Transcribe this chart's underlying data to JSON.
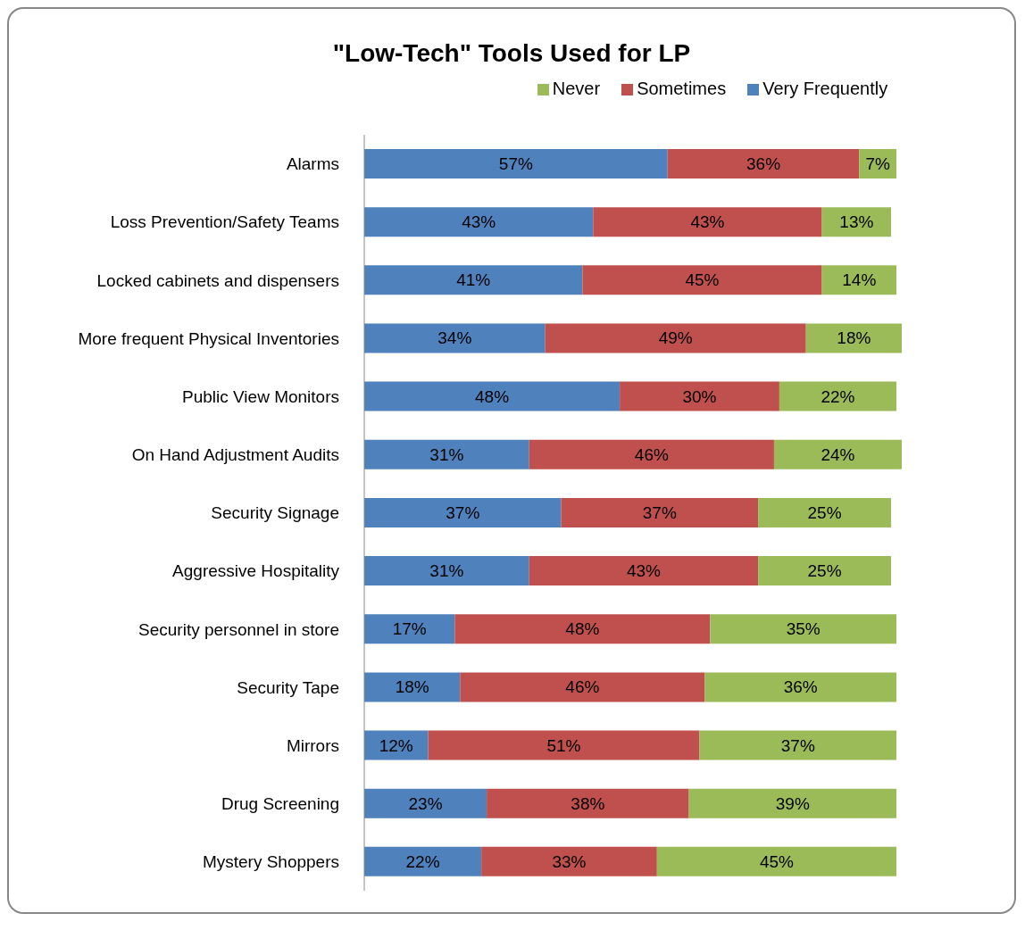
{
  "chart_data": {
    "type": "bar",
    "orientation": "horizontal",
    "stacked": true,
    "title": "\"Low-Tech\" Tools Used for LP",
    "categories": [
      "Alarms",
      "Loss Prevention/Safety Teams",
      "Locked cabinets and dispensers",
      "More frequent Physical Inventories",
      "Public View Monitors",
      "On Hand Adjustment Audits",
      "Security Signage",
      "Aggressive Hospitality",
      "Security personnel in store",
      "Security Tape",
      "Mirrors",
      "Drug Screening",
      "Mystery Shoppers"
    ],
    "series": [
      {
        "name": "Very Frequently",
        "color": "#4f81bd",
        "values": [
          57,
          43,
          41,
          34,
          48,
          31,
          37,
          31,
          17,
          18,
          12,
          23,
          22
        ],
        "value_labels": [
          "57%",
          "43%",
          "41%",
          "34%",
          "48%",
          "31%",
          "37%",
          "31%",
          "17%",
          "18%",
          "12%",
          "23%",
          "22%"
        ]
      },
      {
        "name": "Sometimes",
        "color": "#c0504d",
        "values": [
          36,
          43,
          45,
          49,
          30,
          46,
          37,
          43,
          48,
          46,
          51,
          38,
          33
        ],
        "value_labels": [
          "36%",
          "43%",
          "45%",
          "49%",
          "30%",
          "46%",
          "37%",
          "43%",
          "48%",
          "46%",
          "51%",
          "38%",
          "33%"
        ]
      },
      {
        "name": "Never",
        "color": "#9bbb59",
        "values": [
          7,
          13,
          14,
          18,
          22,
          24,
          25,
          25,
          35,
          36,
          37,
          39,
          45
        ],
        "value_labels": [
          "7%",
          "13%",
          "14%",
          "18%",
          "22%",
          "24%",
          "25%",
          "25%",
          "35%",
          "36%",
          "37%",
          "39%",
          "45%"
        ]
      }
    ],
    "tick_labels": "y",
    "legend": "top",
    "grid": false
  }
}
